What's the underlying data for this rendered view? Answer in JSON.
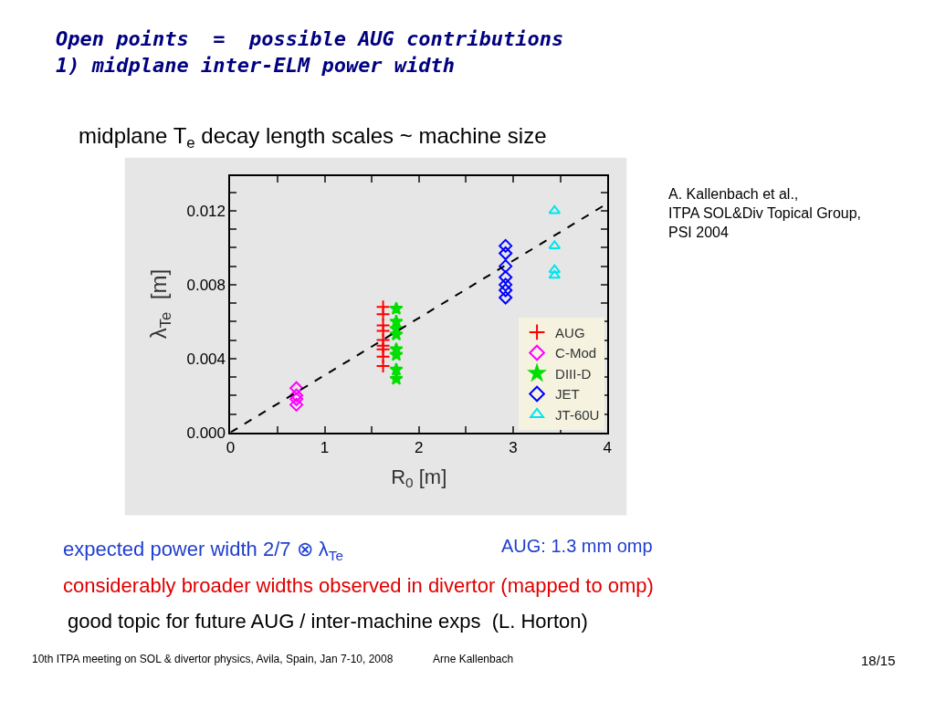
{
  "chart_data": {
    "type": "scatter",
    "title": "Open points  =  possible AUG contributions\n1) midplane inter-ELM power width",
    "subtitle": "midplane T$_{e}$ decay length scales ~ machine size",
    "xlabel": "R$_{0}$ [m]",
    "ylabel": "λ$_{Te}$  [m]",
    "xlim": [
      0,
      4
    ],
    "ylim": [
      0,
      0.0139
    ],
    "xticks": [
      0,
      {
        "value": 0.5,
        "label": null
      },
      1,
      {
        "value": 1.5,
        "label": null
      },
      2,
      {
        "value": 2.5,
        "label": null
      },
      3,
      {
        "value": 3.5,
        "label": null
      },
      4
    ],
    "yticks": [
      {
        "value": 0,
        "label": "0.000"
      },
      {
        "value": 0.001,
        "label": null
      },
      {
        "value": 0.002,
        "label": null
      },
      {
        "value": 0.003,
        "label": null
      },
      {
        "value": 0.004,
        "label": "0.004"
      },
      {
        "value": 0.005,
        "label": null
      },
      {
        "value": 0.006,
        "label": null
      },
      {
        "value": 0.007,
        "label": null
      },
      {
        "value": 0.008,
        "label": "0.008"
      },
      {
        "value": 0.009,
        "label": null
      },
      {
        "value": 0.01,
        "label": null
      },
      {
        "value": 0.011,
        "label": null
      },
      {
        "value": 0.012,
        "label": "0.012"
      },
      {
        "value": 0.013,
        "label": null
      }
    ],
    "grid": false,
    "legend": "bottom right",
    "series": [
      {
        "name": "AUG",
        "color": "#ff0000",
        "marker": "cross",
        "x": [
          1.62,
          1.62,
          1.62,
          1.62,
          1.62,
          1.62,
          1.62,
          1.62,
          1.62
        ],
        "values": [
          0.0068,
          0.0064,
          0.0058,
          0.0055,
          0.005,
          0.0047,
          0.0045,
          0.0041,
          0.0036
        ]
      },
      {
        "name": "C-Mod",
        "color": "#ff00ff",
        "marker": "diamond",
        "x": [
          0.7,
          0.7,
          0.7,
          0.7
        ],
        "values": [
          0.0024,
          0.002,
          0.0018,
          0.0015
        ]
      },
      {
        "name": "DIII-D",
        "color": "#00e000",
        "marker": "star",
        "x": [
          1.76,
          1.76,
          1.76,
          1.76,
          1.76,
          1.76,
          1.76,
          1.76
        ],
        "values": [
          0.0067,
          0.006,
          0.0056,
          0.0053,
          0.0045,
          0.0042,
          0.0034,
          0.0029
        ]
      },
      {
        "name": "JET",
        "color": "#0000ff",
        "marker": "diamond",
        "x": [
          2.92,
          2.92,
          2.92,
          2.92,
          2.92,
          2.92,
          2.92
        ],
        "values": [
          0.0101,
          0.0097,
          0.009,
          0.0084,
          0.008,
          0.0077,
          0.0073
        ]
      },
      {
        "name": "JT-60U",
        "color": "#00e5ee",
        "marker": "triangle",
        "x": [
          3.44,
          3.44,
          3.44,
          3.44
        ],
        "values": [
          0.012,
          0.0101,
          0.0088,
          0.0085
        ]
      },
      {
        "type": "line",
        "color": "#000000",
        "line_style": "dashed",
        "marker": "none",
        "x": [
          0,
          4
        ],
        "values": [
          0,
          0.0124
        ]
      }
    ],
    "annotations": [
      "A. Kallenbach et al.,\nITPA SOL&Div Topical Group,\nPSI 2004",
      "expected power width 2/7 ⊗ λ$_{Te}$",
      "AUG: 1.3 mm omp",
      "considerably broader widths observed in divertor (mapped to omp)",
      "good topic for future AUG / inter-machine exps  (L. Horton)",
      "10th ITPA meeting on SOL & divertor physics, Avila, Spain, Jan 7-10, 2008",
      "Arne Kallenbach",
      "18/15"
    ]
  }
}
